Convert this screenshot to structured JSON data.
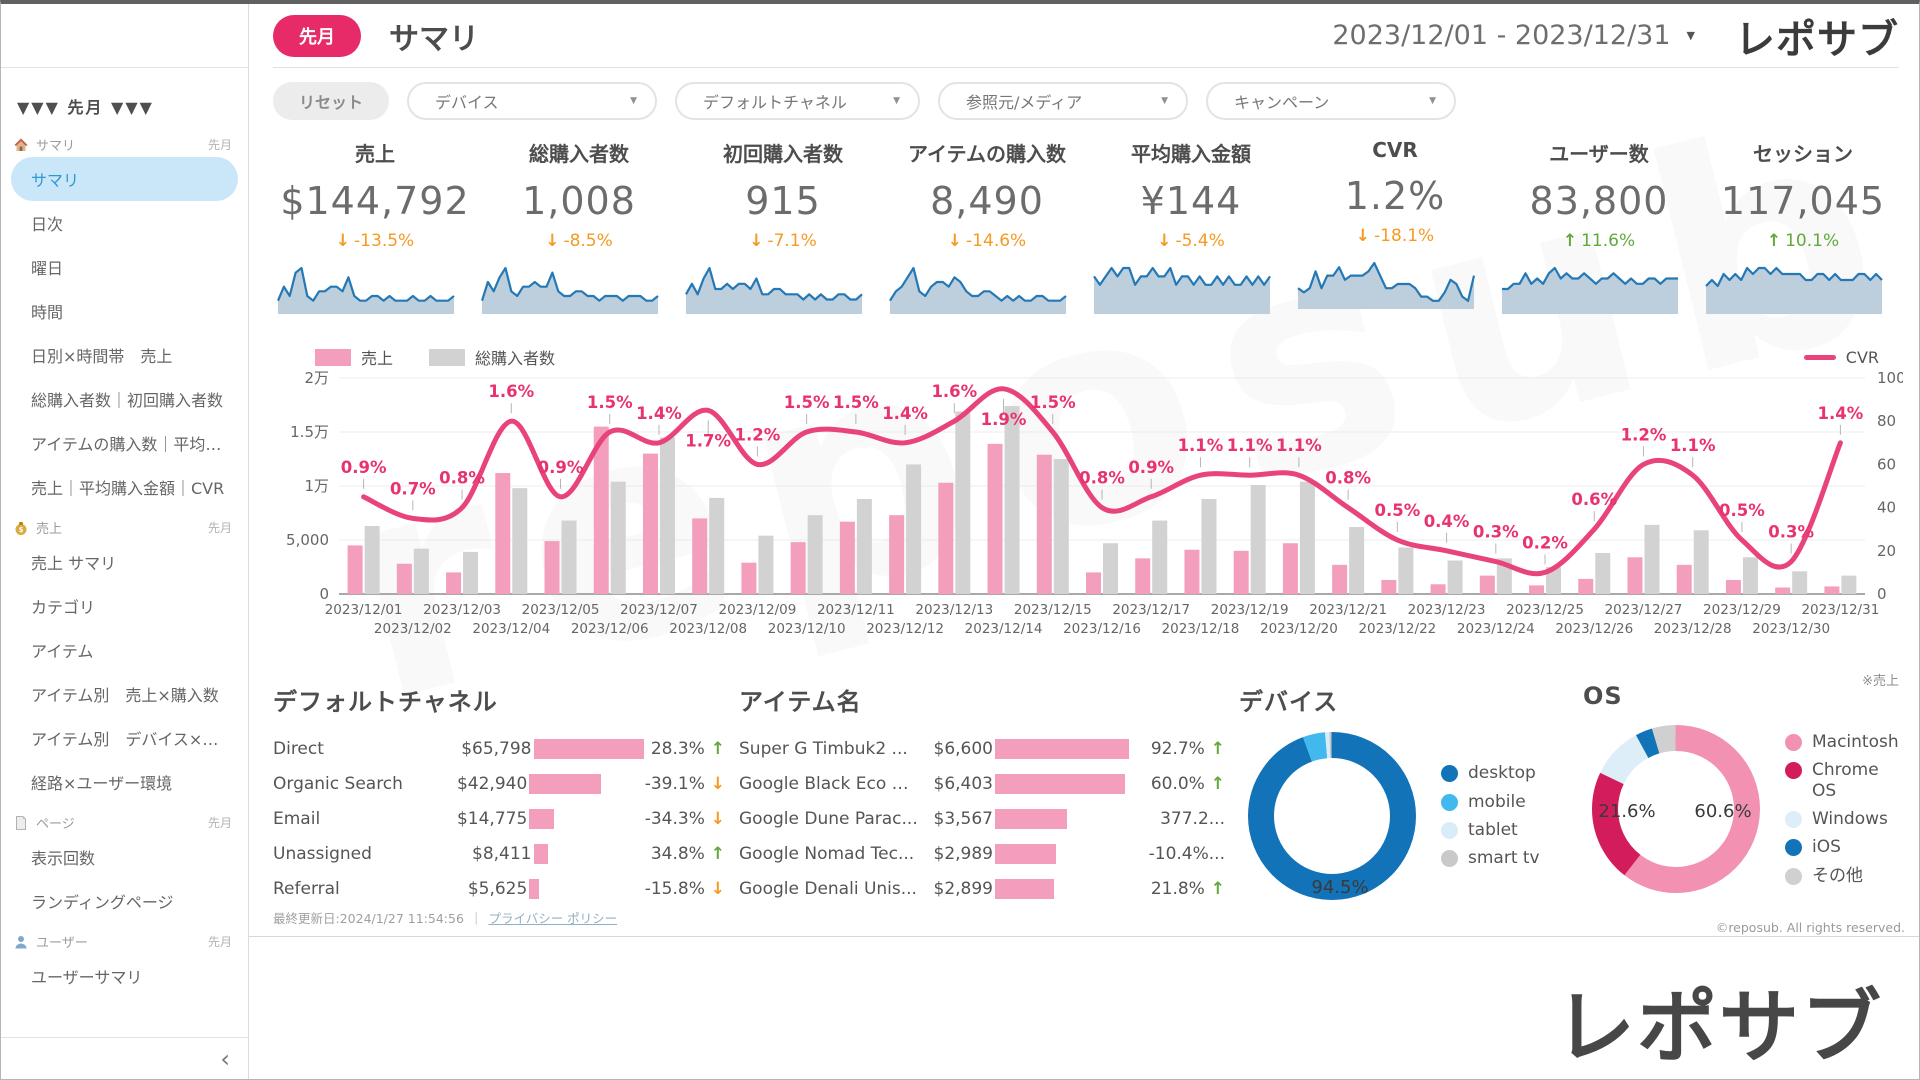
{
  "header": {
    "badge": "先月",
    "title": "サマリ",
    "date_range": "2023/12/01 - 2023/12/31",
    "logo": "レポサブ"
  },
  "sidebar": {
    "top_toggle": "▼▼▼ 先月 ▼▼▼",
    "collapse_icon": "‹",
    "sections": [
      {
        "icon": "home",
        "label": "サマリ",
        "period": "先月",
        "items": [
          {
            "label": "サマリ",
            "active": true
          },
          {
            "label": "日次"
          },
          {
            "label": "曜日"
          },
          {
            "label": "時間"
          },
          {
            "label": "日別×時間帯　売上"
          },
          {
            "label": "総購入者数｜初回購入者数"
          },
          {
            "label": "アイテムの購入数｜平均購..."
          },
          {
            "label": "売上｜平均購入金額｜CVR"
          }
        ]
      },
      {
        "icon": "money",
        "label": "売上",
        "period": "先月",
        "items": [
          {
            "label": "売上 サマリ"
          },
          {
            "label": "カテゴリ"
          },
          {
            "label": "アイテム"
          },
          {
            "label": "アイテム別　売上×購入数"
          },
          {
            "label": "アイテム別　デバイス×OS×..."
          },
          {
            "label": "経路×ユーザー環境"
          }
        ]
      },
      {
        "icon": "page",
        "label": "ページ",
        "period": "先月",
        "items": [
          {
            "label": "表示回数"
          },
          {
            "label": "ランディングページ"
          }
        ]
      },
      {
        "icon": "user",
        "label": "ユーザー",
        "period": "先月",
        "items": [
          {
            "label": "ユーザーサマリ"
          }
        ]
      }
    ]
  },
  "filters": {
    "reset_label": "リセット",
    "dropdowns": [
      {
        "name": "device",
        "label": "デバイス"
      },
      {
        "name": "default-channel",
        "label": "デフォルトチャネル"
      },
      {
        "name": "source-media",
        "label": "参照元/メディア"
      },
      {
        "name": "campaign",
        "label": "キャンペーン"
      }
    ]
  },
  "kpis": [
    {
      "label": "売上",
      "value": "$144,792",
      "delta": "-13.5%",
      "direction": "down",
      "spark": [
        2,
        5,
        3,
        8,
        9,
        3,
        2,
        4,
        4,
        5,
        5,
        4,
        7,
        3,
        2,
        2,
        3,
        3,
        2,
        3,
        2,
        2,
        2,
        3,
        2,
        2,
        3,
        2,
        2,
        2,
        3
      ]
    },
    {
      "label": "総購入者数",
      "value": "1,008",
      "delta": "-8.5%",
      "direction": "down",
      "spark": [
        2,
        6,
        4,
        7,
        9,
        4,
        3,
        5,
        5,
        6,
        5,
        5,
        8,
        4,
        3,
        3,
        4,
        4,
        3,
        3,
        2,
        3,
        3,
        3,
        2,
        3,
        3,
        3,
        2,
        2,
        3
      ]
    },
    {
      "label": "初回購入者数",
      "value": "915",
      "delta": "-7.1%",
      "direction": "down",
      "spark": [
        3,
        5,
        3,
        6,
        8,
        4,
        4,
        5,
        4,
        5,
        5,
        4,
        6,
        3,
        3,
        4,
        4,
        3,
        3,
        3,
        2,
        3,
        2,
        3,
        2,
        2,
        3,
        3,
        2,
        2,
        3
      ]
    },
    {
      "label": "アイテムの購入数",
      "value": "8,490",
      "delta": "-14.6%",
      "direction": "down",
      "spark": [
        2,
        4,
        5,
        7,
        9,
        4,
        3,
        5,
        6,
        6,
        5,
        7,
        6,
        4,
        3,
        3,
        4,
        4,
        3,
        2,
        3,
        2,
        3,
        2,
        2,
        3,
        3,
        2,
        2,
        2,
        3
      ]
    },
    {
      "label": "平均購入金額",
      "value": "¥144",
      "delta": "-5.4%",
      "direction": "down",
      "spark": [
        4,
        3,
        4,
        5,
        4,
        5,
        5,
        3,
        4,
        4,
        5,
        4,
        4,
        5,
        3,
        4,
        4,
        3,
        4,
        3,
        3,
        4,
        3,
        4,
        3,
        3,
        4,
        3,
        4,
        3,
        4
      ]
    },
    {
      "label": "CVR",
      "value": "1.2%",
      "delta": "-18.1%",
      "direction": "down",
      "spark": [
        4,
        3,
        4,
        8,
        4,
        7,
        7,
        9,
        6,
        7,
        7,
        7,
        8,
        10,
        7,
        4,
        4,
        5,
        5,
        5,
        4,
        2,
        2,
        1,
        1,
        3,
        6,
        5,
        2,
        1,
        7
      ]
    },
    {
      "label": "ユーザー数",
      "value": "83,800",
      "delta": "11.6%",
      "direction": "up",
      "spark": [
        4,
        4,
        5,
        5,
        7,
        5,
        6,
        5,
        7,
        8,
        6,
        7,
        6,
        6,
        7,
        6,
        5,
        6,
        6,
        7,
        6,
        5,
        6,
        5,
        5,
        6,
        6,
        5,
        6,
        6,
        6
      ]
    },
    {
      "label": "セッション",
      "value": "117,045",
      "delta": "10.1%",
      "direction": "up",
      "spark": [
        4,
        5,
        4,
        6,
        5,
        6,
        5,
        7,
        6,
        7,
        7,
        6,
        7,
        6,
        6,
        6,
        6,
        5,
        5,
        6,
        6,
        5,
        6,
        5,
        5,
        5,
        6,
        6,
        5,
        6,
        5
      ]
    }
  ],
  "chart_data": {
    "type": "combo",
    "categories": [
      "2023/12/01",
      "2023/12/02",
      "2023/12/03",
      "2023/12/04",
      "2023/12/05",
      "2023/12/06",
      "2023/12/07",
      "2023/12/08",
      "2023/12/09",
      "2023/12/10",
      "2023/12/11",
      "2023/12/12",
      "2023/12/13",
      "2023/12/14",
      "2023/12/15",
      "2023/12/16",
      "2023/12/17",
      "2023/12/18",
      "2023/12/19",
      "2023/12/20",
      "2023/12/21",
      "2023/12/22",
      "2023/12/23",
      "2023/12/24",
      "2023/12/25",
      "2023/12/26",
      "2023/12/27",
      "2023/12/28",
      "2023/12/29",
      "2023/12/30",
      "2023/12/31"
    ],
    "series": [
      {
        "name": "売上",
        "type": "bar",
        "color": "#f49ebd",
        "values": [
          4500,
          2800,
          2000,
          11200,
          4900,
          15500,
          13000,
          7000,
          2900,
          4800,
          6700,
          7300,
          10300,
          13900,
          12900,
          2000,
          3300,
          4100,
          4000,
          4700,
          2700,
          1300,
          900,
          1700,
          800,
          1400,
          3400,
          2700,
          1300,
          600,
          700
        ]
      },
      {
        "name": "総購入者数",
        "type": "bar",
        "color": "#d2d2d2",
        "values": [
          6300,
          4200,
          3900,
          9800,
          6800,
          10400,
          14500,
          8900,
          5400,
          7300,
          8800,
          12000,
          16900,
          17400,
          12500,
          4700,
          6800,
          8800,
          10100,
          10400,
          6200,
          4300,
          3100,
          3300,
          2500,
          3800,
          6400,
          5900,
          3400,
          2100,
          1700
        ]
      },
      {
        "name": "CVR",
        "type": "line",
        "axis": "right",
        "color": "#e8336e",
        "unit": "%",
        "values": [
          0.9,
          0.7,
          0.8,
          1.6,
          0.9,
          1.5,
          1.4,
          1.7,
          1.2,
          1.5,
          1.5,
          1.4,
          1.6,
          1.9,
          1.5,
          0.8,
          0.9,
          1.1,
          1.1,
          1.1,
          0.8,
          0.5,
          0.4,
          0.3,
          0.2,
          0.6,
          1.2,
          1.1,
          0.5,
          0.3,
          1.4
        ]
      }
    ],
    "y_left": {
      "ticks": [
        "2万",
        "1.5万",
        "1万",
        "5,000",
        "0"
      ],
      "max": 20000
    },
    "y_right": {
      "ticks": [
        "100",
        "80",
        "60",
        "40",
        "20",
        "0"
      ],
      "max": 100
    },
    "legend_position": "top"
  },
  "channels": {
    "title": "デフォルトチャネル",
    "rows": [
      {
        "name": "Direct",
        "value": "$65,798",
        "bar": 65798,
        "delta": "28.3%",
        "dir": "up"
      },
      {
        "name": "Organic Search",
        "value": "$42,940",
        "bar": 42940,
        "delta": "-39.1%",
        "dir": "down"
      },
      {
        "name": "Email",
        "value": "$14,775",
        "bar": 14775,
        "delta": "-34.3%",
        "dir": "down"
      },
      {
        "name": "Unassigned",
        "value": "$8,411",
        "bar": 8411,
        "delta": "34.8%",
        "dir": "up"
      },
      {
        "name": "Referral",
        "value": "$5,625",
        "bar": 5625,
        "delta": "-15.8%",
        "dir": "down"
      }
    ]
  },
  "items": {
    "title": "アイテム名",
    "rows": [
      {
        "name": "Super G Timbuk2 ...",
        "value": "$6,600",
        "bar": 6600,
        "delta": "92.7%",
        "dir": "up"
      },
      {
        "name": "Google Black Eco Z...",
        "value": "$6,403",
        "bar": 6403,
        "delta": "60.0%",
        "dir": "up"
      },
      {
        "name": "Google Dune Parac...",
        "value": "$3,567",
        "bar": 3567,
        "delta": "377.2...",
        "dir": "none"
      },
      {
        "name": "Google Nomad Tec...",
        "value": "$2,989",
        "bar": 2989,
        "delta": "-10.4%...",
        "dir": "none"
      },
      {
        "name": "Google Denali Unis...",
        "value": "$2,899",
        "bar": 2899,
        "delta": "21.8%",
        "dir": "up"
      }
    ]
  },
  "device_chart": {
    "title": "デバイス",
    "type": "donut",
    "center_label": "94.5%",
    "slices": [
      {
        "label": "desktop",
        "value": 94.5,
        "color": "#1273b8"
      },
      {
        "label": "mobile",
        "value": 4.3,
        "color": "#41b9ee"
      },
      {
        "label": "tablet",
        "value": 0.8,
        "color": "#d9edf9"
      },
      {
        "label": "smart tv",
        "value": 0.4,
        "color": "#c9c9c9"
      }
    ]
  },
  "os_chart": {
    "title": "OS",
    "type": "donut",
    "note": "※売上",
    "labels_on_chart": [
      {
        "text": "60.6%"
      },
      {
        "text": "21.6%"
      }
    ],
    "slices": [
      {
        "label": "Macintosh",
        "value": 60.6,
        "color": "#f291b2"
      },
      {
        "label": "Chrome OS",
        "value": 21.6,
        "color": "#d31c5c"
      },
      {
        "label": "Windows",
        "value": 10.0,
        "color": "#ddeef9"
      },
      {
        "label": "iOS",
        "value": 3.3,
        "color": "#1273b8"
      },
      {
        "label": "その他",
        "value": 4.5,
        "color": "#d0d0d0"
      }
    ],
    "copyright": "©reposub. All rights reserved."
  },
  "footer": {
    "updated": "最終更新日:2024/1/27 11:54:56",
    "separator": "｜",
    "privacy_link": "プライバシー ポリシー"
  },
  "big_logo": "レポサブ",
  "colors": {
    "accent_pink": "#e72a68",
    "bar_pink": "#f49ebd",
    "bar_gray": "#d2d2d2",
    "line_pink": "#e8437a",
    "spark_blue": "#2478b5",
    "up_green": "#62a93c",
    "down_orange": "#f59a23"
  }
}
